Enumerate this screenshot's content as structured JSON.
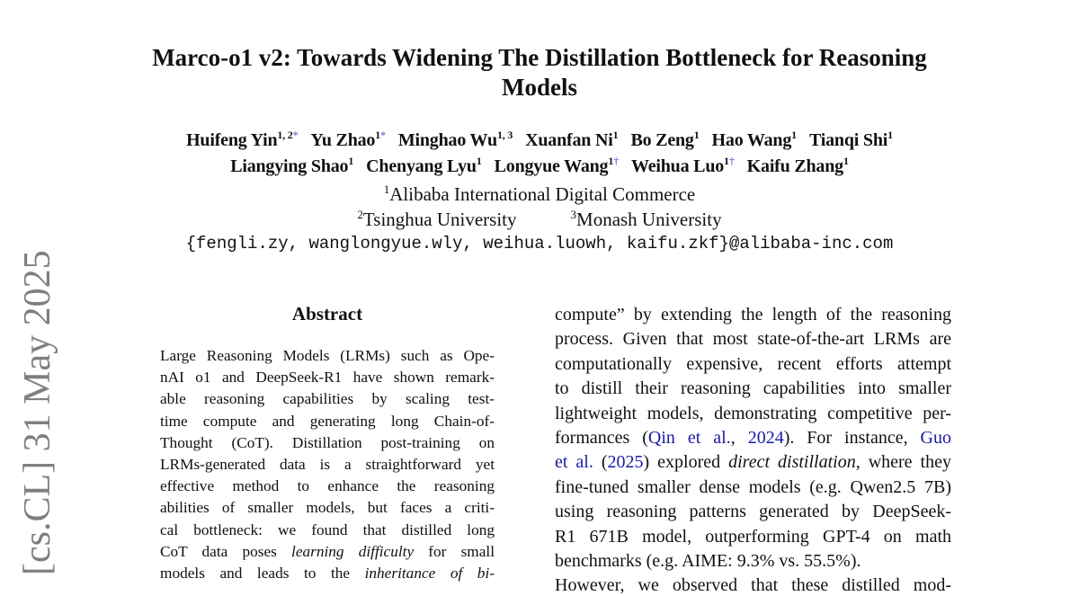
{
  "title": [
    "Marco-o1 v2: Towards Widening The Distillation Bottleneck for Reasoning",
    "Models"
  ],
  "authors": [
    [
      {
        "name": "Huifeng Yin",
        "sup": "1, 2",
        "mark": "*"
      },
      {
        "name": "Yu Zhao",
        "sup": "1",
        "mark": "*"
      },
      {
        "name": "Minghao Wu",
        "sup": "1, 3",
        "mark": ""
      },
      {
        "name": "Xuanfan Ni",
        "sup": "1",
        "mark": ""
      },
      {
        "name": "Bo Zeng",
        "sup": "1",
        "mark": ""
      },
      {
        "name": "Hao Wang",
        "sup": "1",
        "mark": ""
      },
      {
        "name": "Tianqi Shi",
        "sup": "1",
        "mark": ""
      }
    ],
    [
      {
        "name": "Liangying Shao",
        "sup": "1",
        "mark": ""
      },
      {
        "name": "Chenyang Lyu",
        "sup": "1",
        "mark": ""
      },
      {
        "name": "Longyue Wang",
        "sup": "1",
        "mark": "†"
      },
      {
        "name": "Weihua Luo",
        "sup": "1",
        "mark": "†"
      },
      {
        "name": "Kaifu Zhang",
        "sup": "1",
        "mark": ""
      }
    ]
  ],
  "affiliations": [
    [
      {
        "sup": "1",
        "text": "Alibaba International Digital Commerce"
      }
    ],
    [
      {
        "sup": "2",
        "text": "Tsinghua University"
      },
      {
        "sup": "3",
        "text": "Monash University"
      }
    ]
  ],
  "email": "{fengli.zy, wanglongyue.wly, weihua.luowh, kaifu.zkf}@alibaba-inc.com",
  "abstract_heading": "Abstract",
  "arxiv_stamp": "[cs.CL]  31 May 2025",
  "abstract_lines": [
    [
      {
        "t": "Large Reasoning Models (LRMs) such as Ope-"
      }
    ],
    [
      {
        "t": "nAI o1 and DeepSeek-R1 have shown remark-"
      }
    ],
    [
      {
        "t": "able reasoning capabilities by scaling test-"
      }
    ],
    [
      {
        "t": "time compute and generating long Chain-of-"
      }
    ],
    [
      {
        "t": "Thought (CoT). Distillation post-training on"
      }
    ],
    [
      {
        "t": "LRMs-generated data is a straightforward yet"
      }
    ],
    [
      {
        "t": "effective method to enhance the reasoning"
      }
    ],
    [
      {
        "t": "abilities of smaller models, but faces a criti-"
      }
    ],
    [
      {
        "t": "cal bottleneck:  we found that distilled long"
      }
    ],
    [
      {
        "t": "CoT data poses "
      },
      {
        "t": "learning difficulty",
        "s": "it"
      },
      {
        "t": " for small"
      }
    ],
    [
      {
        "t": "models and leads to the "
      },
      {
        "t": "inheritance of bi-",
        "s": "it"
      }
    ]
  ],
  "body_lines": [
    [
      {
        "t": "compute” by extending the length of the reasoning"
      }
    ],
    [
      {
        "t": "process. Given that most state-of-the-art LRMs are"
      }
    ],
    [
      {
        "t": "computationally expensive, recent efforts attempt"
      }
    ],
    [
      {
        "t": "to distill their reasoning capabilities into smaller"
      }
    ],
    [
      {
        "t": "lightweight models, demonstrating competitive per-"
      }
    ],
    [
      {
        "t": "formances ("
      },
      {
        "t": "Qin et al.",
        "s": "ln"
      },
      {
        "t": ", "
      },
      {
        "t": "2024",
        "s": "ln"
      },
      {
        "t": ").  For instance, "
      },
      {
        "t": "Guo",
        "s": "ln"
      }
    ],
    [
      {
        "t": "et al.",
        "s": "ln"
      },
      {
        "t": " ("
      },
      {
        "t": "2025",
        "s": "ln"
      },
      {
        "t": ") explored "
      },
      {
        "t": "direct distillation",
        "s": "it"
      },
      {
        "t": ", where they"
      }
    ],
    [
      {
        "t": "fine-tuned smaller dense models (e.g. Qwen2.5 7B)"
      }
    ],
    [
      {
        "t": "using reasoning patterns generated by DeepSeek-"
      }
    ],
    [
      {
        "t": "R1 671B model, outperforming GPT-4 on math"
      }
    ],
    [
      {
        "t": "benchmarks (e.g. AIME: 9.3% vs. 55.5%).",
        "last": true
      }
    ],
    [
      {
        "t": "    However, we observed that these distilled mod-"
      }
    ]
  ]
}
